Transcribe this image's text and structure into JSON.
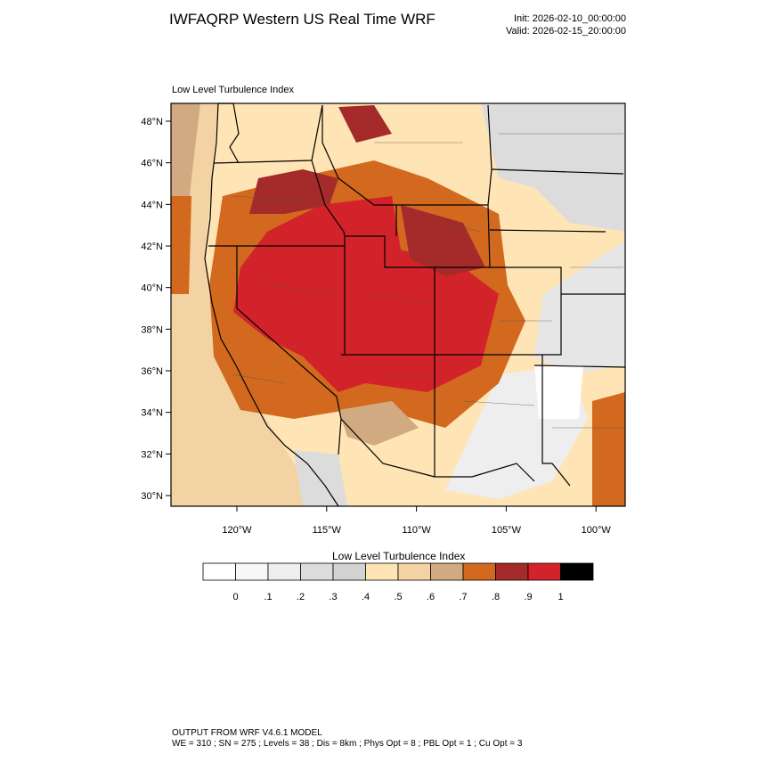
{
  "header": {
    "title": "IWFAQRP Western US Real Time WRF",
    "init": "Init: 2026-02-10_00:00:00",
    "valid": "Valid: 2026-02-15_20:00:00"
  },
  "map": {
    "panel_label": "Low Level Turbulence Index",
    "lat_labels": [
      "48°N",
      "46°N",
      "44°N",
      "42°N",
      "40°N",
      "38°N",
      "36°N",
      "34°N",
      "32°N",
      "30°N"
    ],
    "lon_labels": [
      "120°W",
      "115°W",
      "110°W",
      "105°W",
      "100°W"
    ]
  },
  "colorbar": {
    "title": "Low Level Turbulence Index",
    "colors": [
      "#ffffff",
      "#f7f7f7",
      "#eeeeee",
      "#dcdcdc",
      "#d3d3d3",
      "#ffe4b5",
      "#f3d3a3",
      "#d2aa82",
      "#d2691e",
      "#a52a2a",
      "#d2232a",
      "#000000"
    ],
    "labels": [
      "0",
      ".1",
      ".2",
      ".3",
      ".4",
      ".5",
      ".6",
      ".7",
      ".8",
      ".9",
      "1"
    ]
  },
  "footer": {
    "line1": "OUTPUT FROM WRF V4.6.1 MODEL",
    "line2": "WE = 310 ; SN = 275 ; Levels = 38 ; Dis = 8km ; Phys Opt = 8 ; PBL Opt = 1 ; Cu Opt = 3"
  }
}
